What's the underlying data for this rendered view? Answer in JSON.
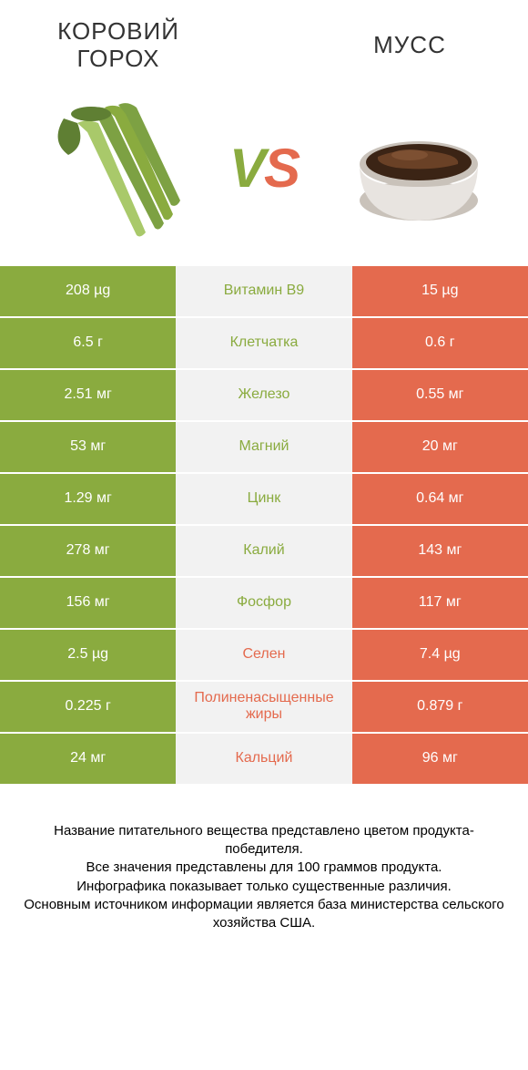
{
  "colors": {
    "green": "#8aab3f",
    "orange": "#e46a4e",
    "midBg": "#f2f2f2",
    "text": "#333333",
    "white": "#ffffff"
  },
  "header": {
    "leftTitle": "КОРОВИЙ ГОРОХ",
    "rightTitle": "МУСС",
    "vsLetterV": "V",
    "vsLetterS": "S"
  },
  "rows": [
    {
      "left": "208 µg",
      "label": "Витамин B9",
      "right": "15 µg",
      "winner": "left"
    },
    {
      "left": "6.5 г",
      "label": "Клетчатка",
      "right": "0.6 г",
      "winner": "left"
    },
    {
      "left": "2.51 мг",
      "label": "Железо",
      "right": "0.55 мг",
      "winner": "left"
    },
    {
      "left": "53 мг",
      "label": "Магний",
      "right": "20 мг",
      "winner": "left"
    },
    {
      "left": "1.29 мг",
      "label": "Цинк",
      "right": "0.64 мг",
      "winner": "left"
    },
    {
      "left": "278 мг",
      "label": "Калий",
      "right": "143 мг",
      "winner": "left"
    },
    {
      "left": "156 мг",
      "label": "Фосфор",
      "right": "117 мг",
      "winner": "left"
    },
    {
      "left": "2.5 µg",
      "label": "Селен",
      "right": "7.4 µg",
      "winner": "right"
    },
    {
      "left": "0.225 г",
      "label": "Полиненасыщенные жиры",
      "right": "0.879 г",
      "winner": "right"
    },
    {
      "left": "24 мг",
      "label": "Кальций",
      "right": "96 мг",
      "winner": "right"
    }
  ],
  "footer": {
    "line1": "Название питательного вещества представлено цветом продукта-победителя.",
    "line2": "Все значения представлены для 100 граммов продукта.",
    "line3": "Инфографика показывает только существенные различия.",
    "line4": "Основным источником информации является база министерства сельского хозяйства США."
  },
  "illustrations": {
    "beans": {
      "stemColor": "#7da143",
      "leafColor": "#5f7f33",
      "highlight": "#a9c96a"
    },
    "mousse": {
      "cupColor": "#e8e4e0",
      "cupShade": "#c9c2ba",
      "chocolate": "#3b2415",
      "chocolateLight": "#6a4126"
    }
  }
}
